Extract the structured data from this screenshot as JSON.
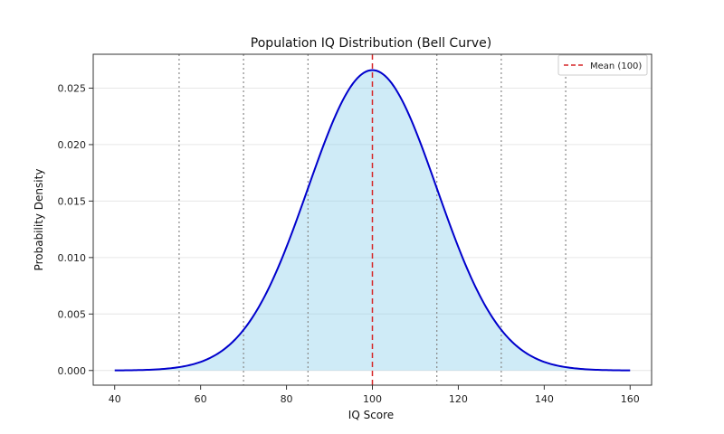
{
  "chart_data": {
    "type": "area",
    "title": "Population IQ Distribution (Bell Curve)",
    "xlabel": "IQ Score",
    "ylabel": "Probability Density",
    "xlim": [
      35,
      165
    ],
    "ylim": [
      -0.0013,
      0.028
    ],
    "x_ticks": [
      40,
      60,
      80,
      100,
      120,
      140,
      160
    ],
    "y_ticks": [
      0.0,
      0.005,
      0.01,
      0.015,
      0.02,
      0.025
    ],
    "x_tick_labels": [
      "40",
      "60",
      "80",
      "100",
      "120",
      "140",
      "160"
    ],
    "y_tick_labels": [
      "0.000",
      "0.005",
      "0.010",
      "0.015",
      "0.020",
      "0.025"
    ],
    "x_range": [
      40,
      160
    ],
    "distribution": {
      "mean": 100,
      "std": 15
    },
    "mean_line": {
      "x": 100,
      "label": "Mean (100)"
    },
    "std_lines": [
      55,
      70,
      85,
      115,
      130,
      145
    ],
    "grid": {
      "horizontal": true,
      "vertical": false
    },
    "legend": {
      "position": "top-right",
      "entries": [
        "Mean (100)"
      ]
    },
    "colors": {
      "curve": "#0000cc",
      "fill": "#87ceeb",
      "mean_line": "#d62728",
      "std_lines": "#888888",
      "grid": "#e6e6e6"
    }
  }
}
